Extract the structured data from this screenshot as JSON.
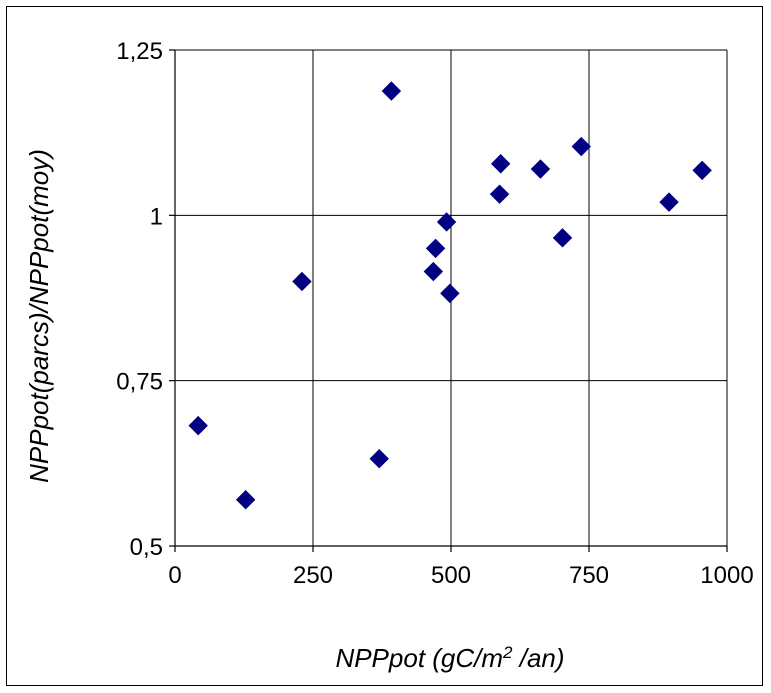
{
  "chart_data": {
    "type": "scatter",
    "title": "",
    "xlabel_parts": {
      "main": "NPPpot (gC/m",
      "sup": "2",
      "tail": " /an)"
    },
    "ylabel": "NPPpot(parcs)/NPPpot(moy)",
    "xlim": [
      0,
      1000
    ],
    "ylim": [
      0.5,
      1.25
    ],
    "x_ticks": [
      0,
      250,
      500,
      750,
      1000
    ],
    "x_tick_labels": [
      "0",
      "250",
      "500",
      "750",
      "1000"
    ],
    "y_ticks": [
      0.5,
      0.75,
      1,
      1.25
    ],
    "y_tick_labels": [
      "0,5",
      "0,75",
      "1",
      "1,25"
    ],
    "grid": true,
    "legend": "none",
    "marker": "diamond",
    "marker_color": "#000080",
    "points": [
      {
        "x": 42,
        "y": 0.682
      },
      {
        "x": 128,
        "y": 0.57
      },
      {
        "x": 230,
        "y": 0.9
      },
      {
        "x": 370,
        "y": 0.632
      },
      {
        "x": 392,
        "y": 1.188
      },
      {
        "x": 468,
        "y": 0.915
      },
      {
        "x": 472,
        "y": 0.95
      },
      {
        "x": 492,
        "y": 0.99
      },
      {
        "x": 498,
        "y": 0.882
      },
      {
        "x": 588,
        "y": 1.032
      },
      {
        "x": 590,
        "y": 1.078
      },
      {
        "x": 662,
        "y": 1.07
      },
      {
        "x": 702,
        "y": 0.966
      },
      {
        "x": 736,
        "y": 1.104
      },
      {
        "x": 895,
        "y": 1.02
      },
      {
        "x": 955,
        "y": 1.068
      }
    ]
  }
}
